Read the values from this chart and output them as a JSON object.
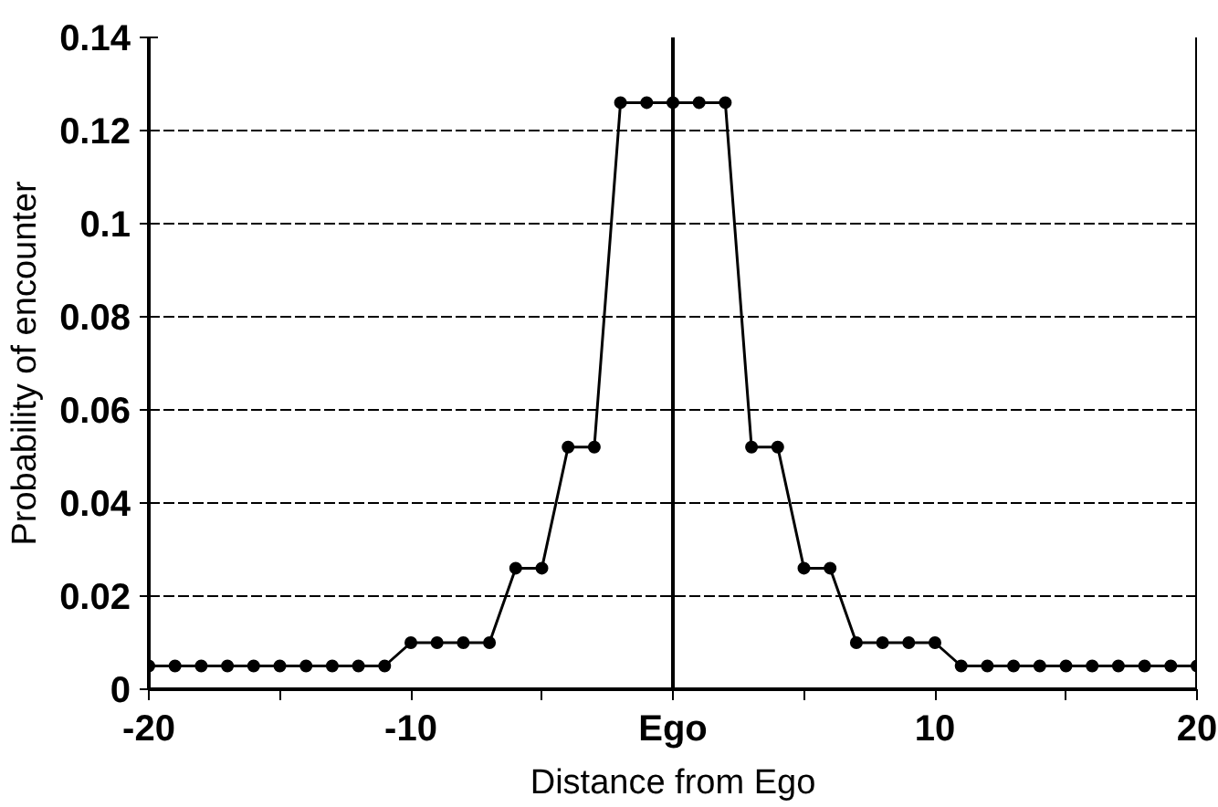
{
  "chart_data": {
    "type": "line",
    "xlabel": "Distance from Ego",
    "ylabel": "Probability of encounter",
    "x": [
      -20,
      -19,
      -18,
      -17,
      -16,
      -15,
      -14,
      -13,
      -12,
      -11,
      -10,
      -9,
      -8,
      -7,
      -6,
      -5,
      -4,
      -3,
      -2,
      -1,
      0,
      1,
      2,
      3,
      4,
      5,
      6,
      7,
      8,
      9,
      10,
      11,
      12,
      13,
      14,
      15,
      16,
      17,
      18,
      19,
      20
    ],
    "series": [
      {
        "color": "#000000",
        "values": [
          0.005,
          0.005,
          0.005,
          0.005,
          0.005,
          0.005,
          0.005,
          0.005,
          0.005,
          0.005,
          0.01,
          0.01,
          0.01,
          0.01,
          0.026,
          0.026,
          0.052,
          0.052,
          0.126,
          0.126,
          0.126,
          0.126,
          0.126,
          0.052,
          0.052,
          0.026,
          0.026,
          0.01,
          0.01,
          0.01,
          0.01,
          0.005,
          0.005,
          0.005,
          0.005,
          0.005,
          0.005,
          0.005,
          0.005,
          0.005,
          0.005
        ]
      }
    ],
    "xlim": [
      -20,
      20
    ],
    "ylim": [
      0,
      0.14
    ],
    "xticks": [
      -20,
      {
        "value": -15,
        "label": null
      },
      -10,
      {
        "value": -5,
        "label": null
      },
      {
        "value": 0,
        "label": "Ego"
      },
      {
        "value": 5,
        "label": null
      },
      10,
      {
        "value": 15,
        "label": null
      },
      20
    ],
    "yticks": [
      0,
      0.02,
      0.04,
      0.06,
      0.08,
      0.1,
      0.12,
      0.14
    ],
    "ref_lines": [
      {
        "axis": "x",
        "value": 0,
        "color": "#000000"
      },
      {
        "axis": "x",
        "value": 20,
        "color": "#000000"
      }
    ],
    "grid": "y",
    "marker": "circle",
    "line_style": "solid"
  }
}
